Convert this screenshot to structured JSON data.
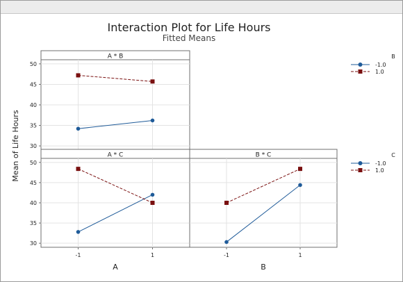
{
  "chart_data": {
    "type": "line",
    "title": "Interaction Plot for Life Hours",
    "subtitle": "Fitted Means",
    "ylabel": "Mean of Life Hours",
    "ylim": [
      29,
      51
    ],
    "yticks": [
      30,
      35,
      40,
      45,
      50
    ],
    "xticks": [
      "-1",
      "1"
    ],
    "xlabels": [
      "A",
      "B"
    ],
    "colors": {
      "low": "#1f5b99",
      "high": "#7a1010"
    },
    "legends": [
      {
        "title": "B",
        "entries": [
          "-1.0",
          "1.0"
        ]
      },
      {
        "title": "C",
        "entries": [
          "-1.0",
          "1.0"
        ]
      }
    ],
    "panels": [
      {
        "title": "A * B",
        "x": [
          -1,
          1
        ],
        "series": [
          {
            "name": "-1.0",
            "values": [
              34.2,
              36.2
            ]
          },
          {
            "name": "1.0",
            "values": [
              47.2,
              45.7
            ]
          }
        ]
      },
      {
        "title": "A * C",
        "x": [
          -1,
          1
        ],
        "series": [
          {
            "name": "-1.0",
            "values": [
              32.8,
              42.0
            ]
          },
          {
            "name": "1.0",
            "values": [
              48.4,
              40.0
            ]
          }
        ]
      },
      {
        "title": "B * C",
        "x": [
          -1,
          1
        ],
        "series": [
          {
            "name": "-1.0",
            "values": [
              30.3,
              44.4
            ]
          },
          {
            "name": "1.0",
            "values": [
              40.0,
              48.4
            ]
          }
        ]
      }
    ]
  }
}
